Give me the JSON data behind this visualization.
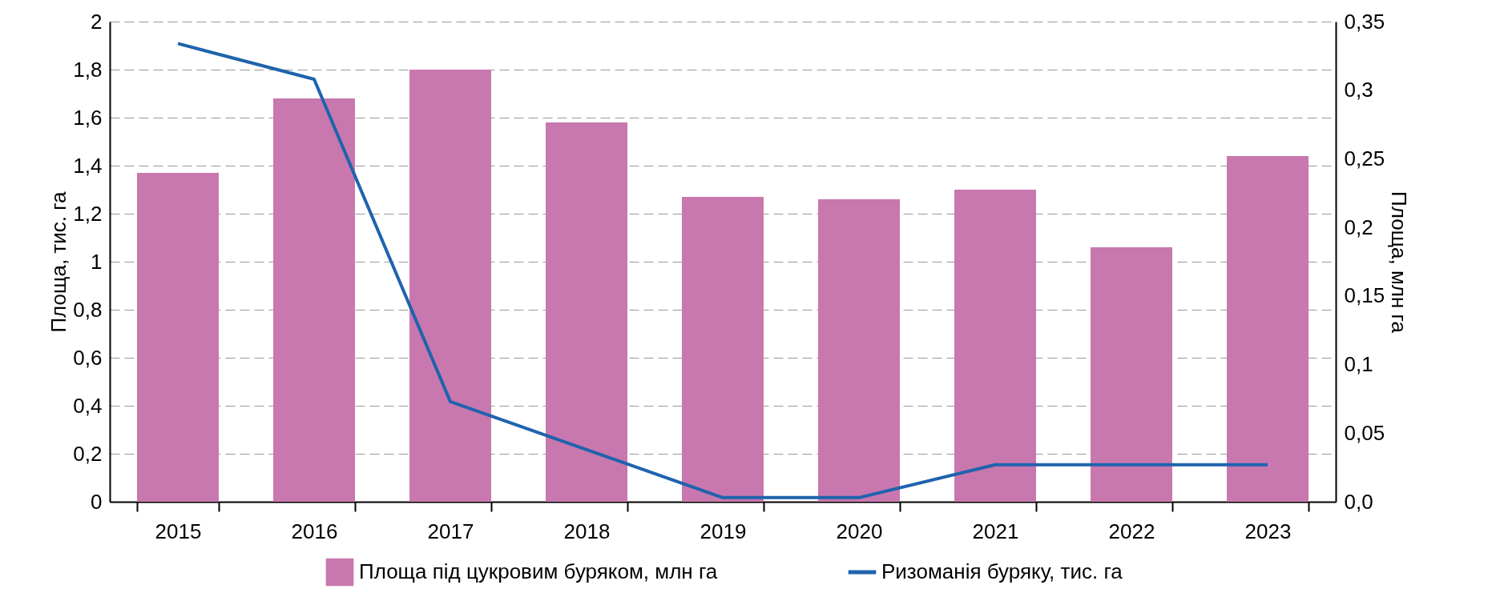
{
  "chart_data": {
    "type": "bar",
    "categories": [
      "2015",
      "2016",
      "2017",
      "2018",
      "2019",
      "2020",
      "2021",
      "2022",
      "2023"
    ],
    "series": [
      {
        "name": "Площа під цукровим буряком, млн га",
        "color": "#c878ae",
        "values": [
          1.37,
          1.68,
          1.8,
          1.58,
          1.27,
          1.26,
          1.3,
          1.06,
          1.44
        ]
      },
      {
        "name": "Ризоманія буряку, тис. га",
        "type": "line",
        "axis": "y2",
        "color": "#1f63ad",
        "values": [
          0.334,
          0.308,
          0.073,
          0.038,
          0.003,
          0.003,
          0.027,
          0.027,
          0.027
        ]
      }
    ],
    "ylabel": "Площа, тис. га",
    "y2label": "Площа, млн га",
    "ylim": [
      0,
      2
    ],
    "yticks": [
      0,
      {
        "value": 0.2,
        "label": "0,2"
      },
      {
        "value": 0.4,
        "label": "0,4"
      },
      {
        "value": 0.6,
        "label": "0,6"
      },
      {
        "value": 0.8,
        "label": "0,8"
      },
      1,
      {
        "value": 1.2,
        "label": "1,2"
      },
      {
        "value": 1.4,
        "label": "1,4"
      },
      {
        "value": 1.6,
        "label": "1,6"
      },
      {
        "value": 1.8,
        "label": "1,8"
      },
      2
    ],
    "y2lim": [
      0,
      0.35
    ],
    "y2ticks": [
      {
        "value": 0,
        "label": "0,0"
      },
      {
        "value": 0.05,
        "label": "0,05"
      },
      {
        "value": 0.1,
        "label": "0,1"
      },
      {
        "value": 0.15,
        "label": "0,15"
      },
      {
        "value": 0.2,
        "label": "0,2"
      },
      {
        "value": 0.25,
        "label": "0,25"
      },
      {
        "value": 0.3,
        "label": "0,3"
      },
      {
        "value": 0.35,
        "label": "0,35"
      }
    ],
    "grid": "y",
    "legend": "bottom"
  }
}
